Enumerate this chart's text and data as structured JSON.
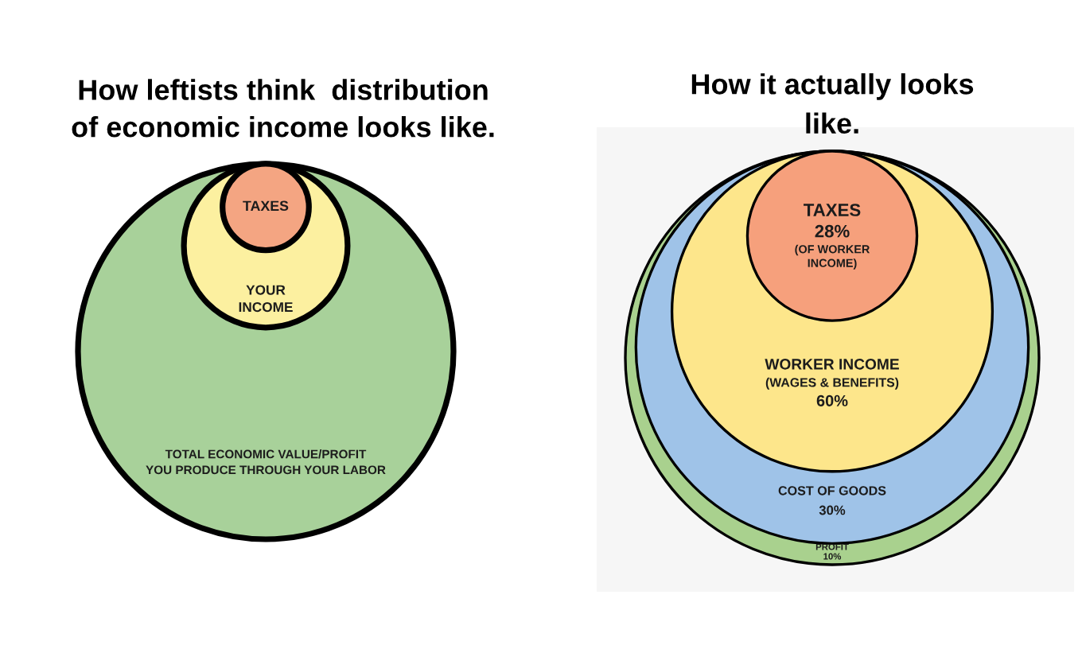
{
  "chart_data": [
    {
      "type": "other",
      "title": "How leftists think  distribution\nof economic income looks like.",
      "categories": [
        "TAXES",
        "YOUR\nINCOME",
        "TOTAL ECONOMIC VALUE/PROFIT\nYOU PRODUCE THROUGH YOUR LABOR"
      ],
      "colors": [
        "#f4a582",
        "#fcf0a0",
        "#a8d19a"
      ]
    },
    {
      "type": "other",
      "title": "How it actually looks\nlike.",
      "categories": [
        "TAXES",
        "WORKER INCOME\n(WAGES & BENEFITS)",
        "COST OF GOODS",
        "PROFIT"
      ],
      "values": [
        28,
        60,
        30,
        10
      ],
      "value_labels": [
        "28%\n(OF WORKER\nINCOME)",
        "60%",
        "30%",
        "10%"
      ],
      "colors": [
        "#f6a07c",
        "#fde68b",
        "#9fc3e8",
        "#a9d18e"
      ]
    }
  ]
}
